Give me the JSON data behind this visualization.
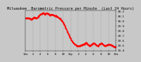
{
  "title": "Milwaukee  Barometric Pressure per Minute  (Last 24 Hours)",
  "bg_color": "#c8c8c8",
  "plot_bg_color": "#c8c8c8",
  "line_color": "#ff0000",
  "grid_color": "#888888",
  "ylim": [
    29.38,
    30.22
  ],
  "yticks": [
    29.4,
    29.5,
    29.6,
    29.7,
    29.8,
    29.9,
    30.0,
    30.1,
    30.2
  ],
  "ytick_labels": [
    "29.4",
    "29.5",
    "29.6",
    "29.7",
    "29.8",
    "29.9",
    "30.0",
    "30.1",
    "30.2"
  ],
  "x_segments": [
    [
      0,
      30.05
    ],
    [
      50,
      30.06
    ],
    [
      100,
      30.03
    ],
    [
      150,
      30.08
    ],
    [
      170,
      30.05
    ],
    [
      200,
      30.07
    ],
    [
      230,
      30.12
    ],
    [
      260,
      30.14
    ],
    [
      290,
      30.17
    ],
    [
      310,
      30.13
    ],
    [
      340,
      30.16
    ],
    [
      370,
      30.14
    ],
    [
      400,
      30.12
    ],
    [
      430,
      30.13
    ],
    [
      460,
      30.11
    ],
    [
      490,
      30.1
    ],
    [
      520,
      30.08
    ],
    [
      550,
      30.05
    ],
    [
      580,
      30.0
    ],
    [
      620,
      29.92
    ],
    [
      660,
      29.8
    ],
    [
      700,
      29.68
    ],
    [
      740,
      29.58
    ],
    [
      780,
      29.52
    ],
    [
      820,
      29.48
    ],
    [
      860,
      29.48
    ],
    [
      900,
      29.5
    ],
    [
      940,
      29.52
    ],
    [
      970,
      29.55
    ],
    [
      1000,
      29.5
    ],
    [
      1030,
      29.48
    ],
    [
      1060,
      29.52
    ],
    [
      1090,
      29.54
    ],
    [
      1120,
      29.5
    ],
    [
      1150,
      29.48
    ],
    [
      1180,
      29.52
    ],
    [
      1210,
      29.54
    ],
    [
      1240,
      29.5
    ],
    [
      1270,
      29.48
    ],
    [
      1300,
      29.5
    ],
    [
      1330,
      29.52
    ],
    [
      1360,
      29.5
    ],
    [
      1390,
      29.48
    ],
    [
      1420,
      29.46
    ],
    [
      1439,
      29.46
    ]
  ],
  "xtick_pos": [
    0,
    120,
    240,
    360,
    480,
    600,
    720,
    840,
    960,
    1080,
    1200,
    1320,
    1439
  ],
  "xtick_labels": [
    "12a",
    "2",
    "4",
    "6",
    "8",
    "10",
    "12p",
    "2",
    "4",
    "6",
    "8",
    "10",
    "12a"
  ],
  "title_fontsize": 3.8,
  "tick_fontsize": 3.0,
  "line_width": 0.7,
  "marker_size": 1.0,
  "noise_std": 0.004
}
